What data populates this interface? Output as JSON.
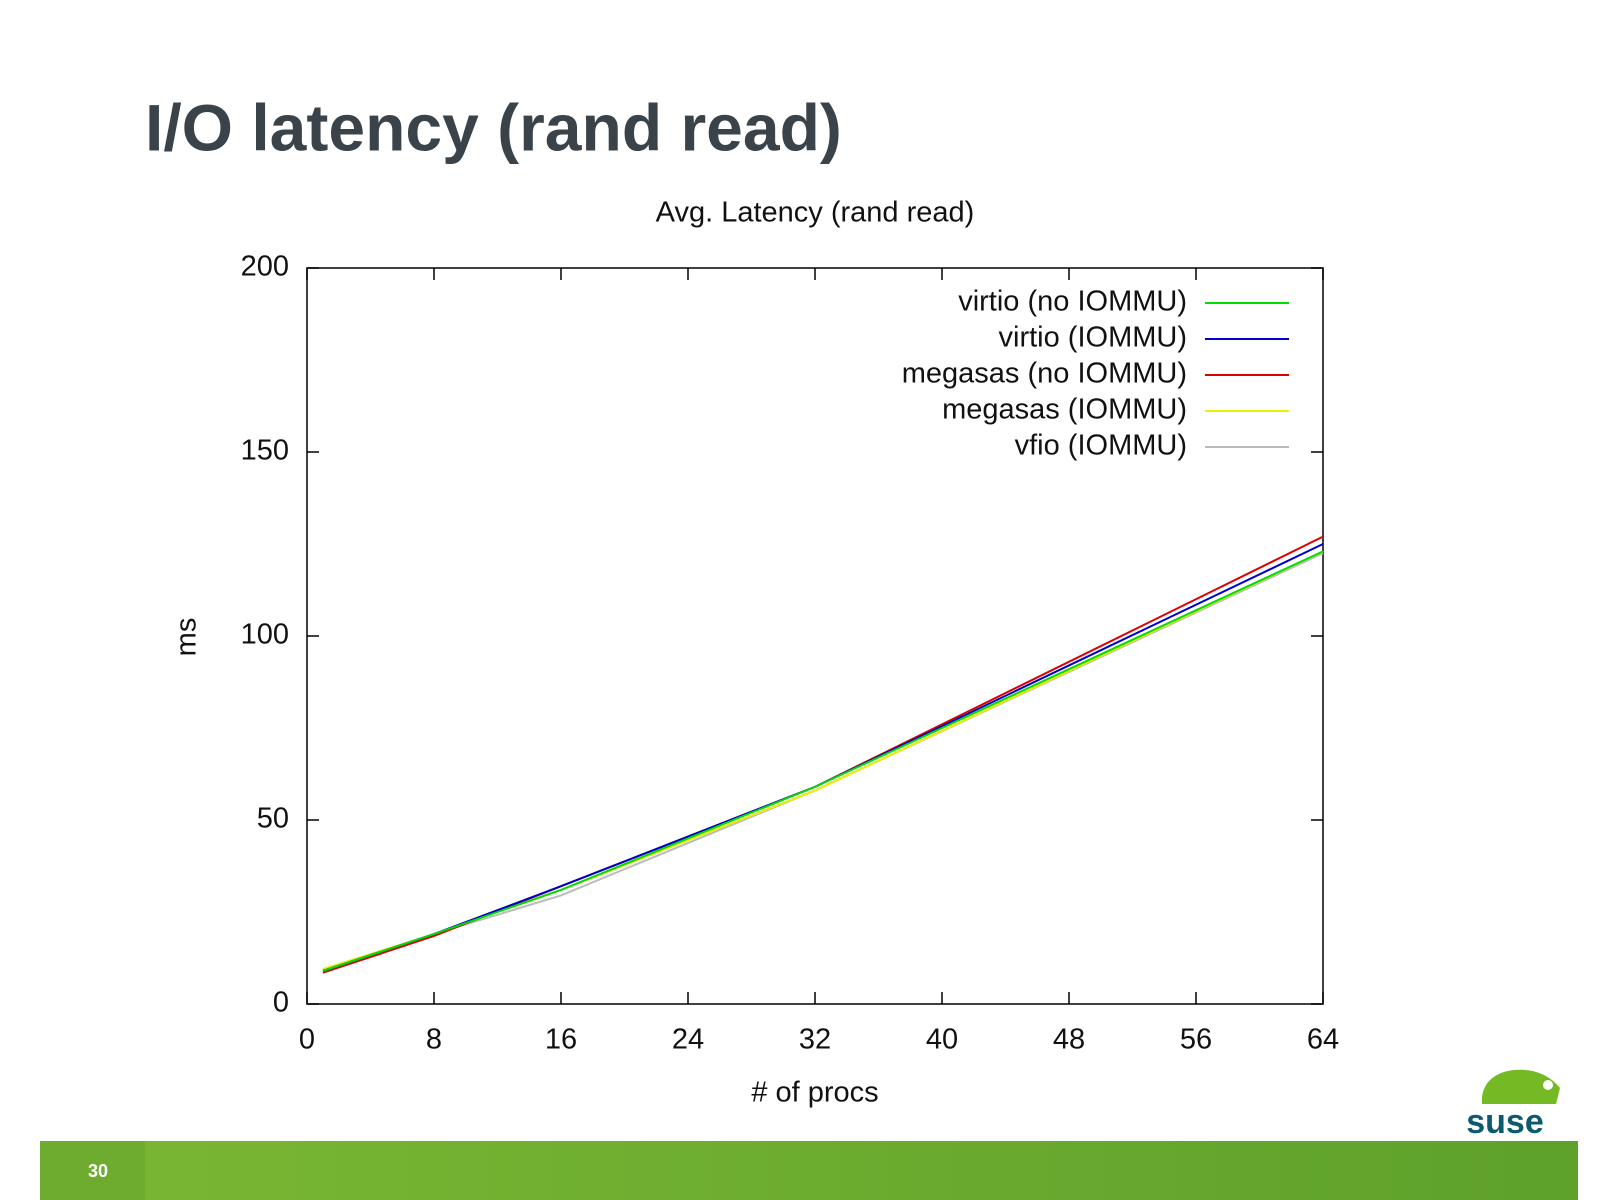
{
  "slide": {
    "title": "I/O latency (rand read)",
    "page_number": "30",
    "logo": "suse"
  },
  "chart_data": {
    "type": "line",
    "title": "Avg. Latency (rand read)",
    "x_label": "# of procs",
    "y_label": "ms",
    "x": [
      1,
      8,
      16,
      32,
      64
    ],
    "series": [
      {
        "name": "virtio (no IOMMU)",
        "color": "#00dd00",
        "values": [
          9,
          19,
          31,
          59,
          123
        ]
      },
      {
        "name": "virtio (IOMMU)",
        "color": "#0000cc",
        "values": [
          9,
          19,
          32,
          59,
          125
        ]
      },
      {
        "name": "megasas (no IOMMU)",
        "color": "#dd0000",
        "values": [
          8.5,
          18.5,
          32,
          59,
          127
        ]
      },
      {
        "name": "megasas (IOMMU)",
        "color": "#eeee00",
        "values": [
          9.5,
          19,
          31,
          58,
          123
        ]
      },
      {
        "name": "vfio (IOMMU)",
        "color": "#bbbbbb",
        "values": [
          9,
          19,
          29.5,
          58,
          122.5
        ]
      }
    ],
    "xlim": [
      0,
      64
    ],
    "xticks": [
      0,
      8,
      16,
      24,
      32,
      40,
      48,
      56,
      64
    ],
    "ylim": [
      0,
      200
    ],
    "yticks": [
      0,
      50,
      100,
      150,
      200
    ],
    "grid": false,
    "legend": "top-right"
  }
}
